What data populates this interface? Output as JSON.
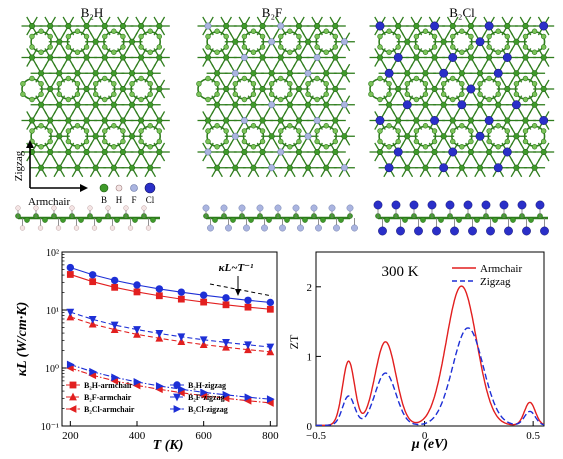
{
  "panels": {
    "structures": [
      {
        "title": "B₂H",
        "dopant": "H"
      },
      {
        "title": "B₂F",
        "dopant": "F"
      },
      {
        "title": "B₂Cl",
        "dopant": "Cl"
      }
    ],
    "axis_arrows": {
      "vertical": "Zigzag",
      "horizontal": "Armchair"
    },
    "atom_legend": [
      "B",
      "H",
      "F",
      "Cl"
    ]
  },
  "colors": {
    "boron": "#3f9a2a",
    "boron_light": "#7cc35a",
    "bond": "#2f7d1d",
    "hydrogen": "#f4e4e4",
    "fluorine": "#aab4e0",
    "chlorine": "#2a2fc8",
    "red": "#e21f1f",
    "blue": "#1d2fd6"
  },
  "chart_data": [
    {
      "type": "line",
      "xlabel": "T (K)",
      "ylabel": "κL (W/cm·K)",
      "xlim": [
        175,
        820
      ],
      "ylim": [
        0.1,
        100
      ],
      "yscale": "log",
      "xticks": [
        200,
        400,
        600,
        800
      ],
      "yticks": [
        {
          "v": 0.1,
          "label": "10⁻¹"
        },
        {
          "v": 1,
          "label": "10⁰"
        },
        {
          "v": 10,
          "label": "10¹"
        },
        {
          "v": 100,
          "label": "10²"
        }
      ],
      "annotation": "κL~T⁻¹",
      "x": [
        200,
        267,
        333,
        400,
        467,
        533,
        600,
        667,
        733,
        800
      ],
      "series": [
        {
          "name": "B₂H-armchair",
          "color": "#e21f1f",
          "marker": "square",
          "dash": "solid",
          "values": [
            41.0,
            30.8,
            24.6,
            20.5,
            17.6,
            15.4,
            13.7,
            12.3,
            11.2,
            10.3
          ]
        },
        {
          "name": "B₂H-zigzag",
          "color": "#1d2fd6",
          "marker": "circle",
          "dash": "solid",
          "values": [
            54.0,
            40.5,
            32.4,
            27.0,
            23.1,
            20.3,
            18.0,
            16.2,
            14.7,
            13.5
          ]
        },
        {
          "name": "B₂F-armchair",
          "color": "#e21f1f",
          "marker": "triangle-up",
          "dash": "dashed",
          "values": [
            7.6,
            5.7,
            4.6,
            3.8,
            3.26,
            2.85,
            2.53,
            2.28,
            2.07,
            1.9
          ]
        },
        {
          "name": "B₂F-zigzag",
          "color": "#1d2fd6",
          "marker": "triangle-down",
          "dash": "dashed",
          "values": [
            9.2,
            6.9,
            5.5,
            4.6,
            3.94,
            3.45,
            3.07,
            2.76,
            2.51,
            2.3
          ]
        },
        {
          "name": "B₂Cl-armchair",
          "color": "#e21f1f",
          "marker": "triangle-left",
          "dash": "dashdot",
          "values": [
            1.0,
            0.75,
            0.6,
            0.5,
            0.43,
            0.375,
            0.333,
            0.3,
            0.273,
            0.25
          ]
        },
        {
          "name": "B₂Cl-zigzag",
          "color": "#1d2fd6",
          "marker": "triangle-right",
          "dash": "dashdot",
          "values": [
            1.15,
            0.86,
            0.69,
            0.575,
            0.49,
            0.43,
            0.38,
            0.345,
            0.313,
            0.29
          ]
        }
      ]
    },
    {
      "type": "line",
      "title": "300 K",
      "xlabel": "μ (eV)",
      "ylabel": "ZT",
      "xlim": [
        -0.5,
        0.55
      ],
      "ylim": [
        0,
        2.5
      ],
      "xticks": [
        -0.5,
        0,
        0.5
      ],
      "yticks": [
        0,
        1,
        2
      ],
      "series": [
        {
          "name": "Armchair",
          "color": "#e21f1f",
          "dash": "solid",
          "peaks": [
            {
              "mu": -0.35,
              "h": 0.92,
              "w": 0.028
            },
            {
              "mu": -0.18,
              "h": 1.2,
              "w": 0.048
            },
            {
              "mu": 0.17,
              "h": 2.0,
              "w": 0.07
            },
            {
              "mu": 0.485,
              "h": 0.33,
              "w": 0.025
            }
          ]
        },
        {
          "name": "Zigzag",
          "color": "#1d2fd6",
          "dash": "dashed",
          "peaks": [
            {
              "mu": -0.35,
              "h": 0.42,
              "w": 0.028
            },
            {
              "mu": -0.18,
              "h": 0.75,
              "w": 0.048
            },
            {
              "mu": 0.2,
              "h": 1.4,
              "w": 0.07
            },
            {
              "mu": 0.485,
              "h": 0.2,
              "w": 0.025
            }
          ]
        }
      ]
    }
  ]
}
